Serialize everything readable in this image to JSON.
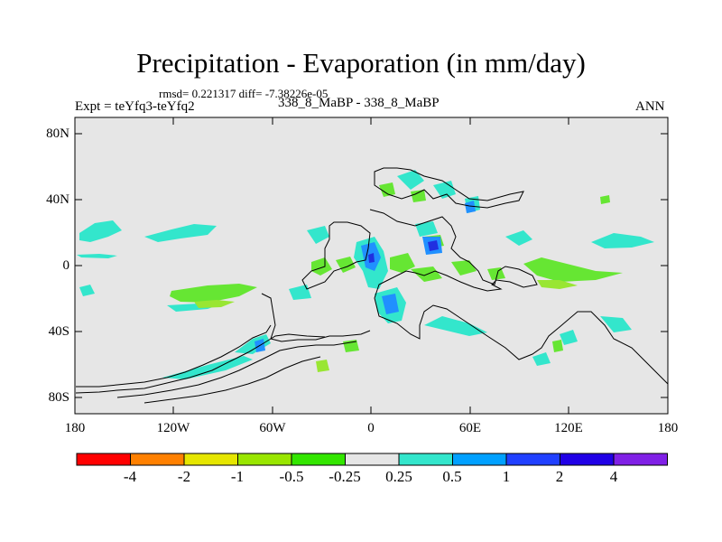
{
  "title": "Precipitation - Evaporation (in mm/day)",
  "stats": "rmsd= 0.221317 diff= -7.38226e-05",
  "experiment": "Expt = teYfq3-teYfq2",
  "subtitle_center": "338_8_MaBP - 338_8_MaBP",
  "season": "ANN",
  "y_axis_labels": [
    "80N",
    "40N",
    "0",
    "40S",
    "80S"
  ],
  "x_axis_labels": [
    "180",
    "120W",
    "60W",
    "0",
    "60E",
    "120E",
    "180"
  ],
  "colorbar": {
    "labels": [
      "-4",
      "-2",
      "-1",
      "-0.5",
      "-0.25",
      "0.25",
      "0.5",
      "1",
      "2",
      "4"
    ],
    "colors": [
      "#ff0000",
      "#ff8000",
      "#e6e600",
      "#99e600",
      "#33e600",
      "#e6e6e6",
      "#33e6cc",
      "#00a0ff",
      "#2040ff",
      "#2000e6",
      "#8020e6"
    ]
  },
  "map_colors": {
    "background": "#e6e6e6",
    "cyan": "#33e6cc",
    "green": "#66e633",
    "lightgreen": "#99e633",
    "blue": "#2090ff",
    "darkblue": "#2030e0"
  }
}
